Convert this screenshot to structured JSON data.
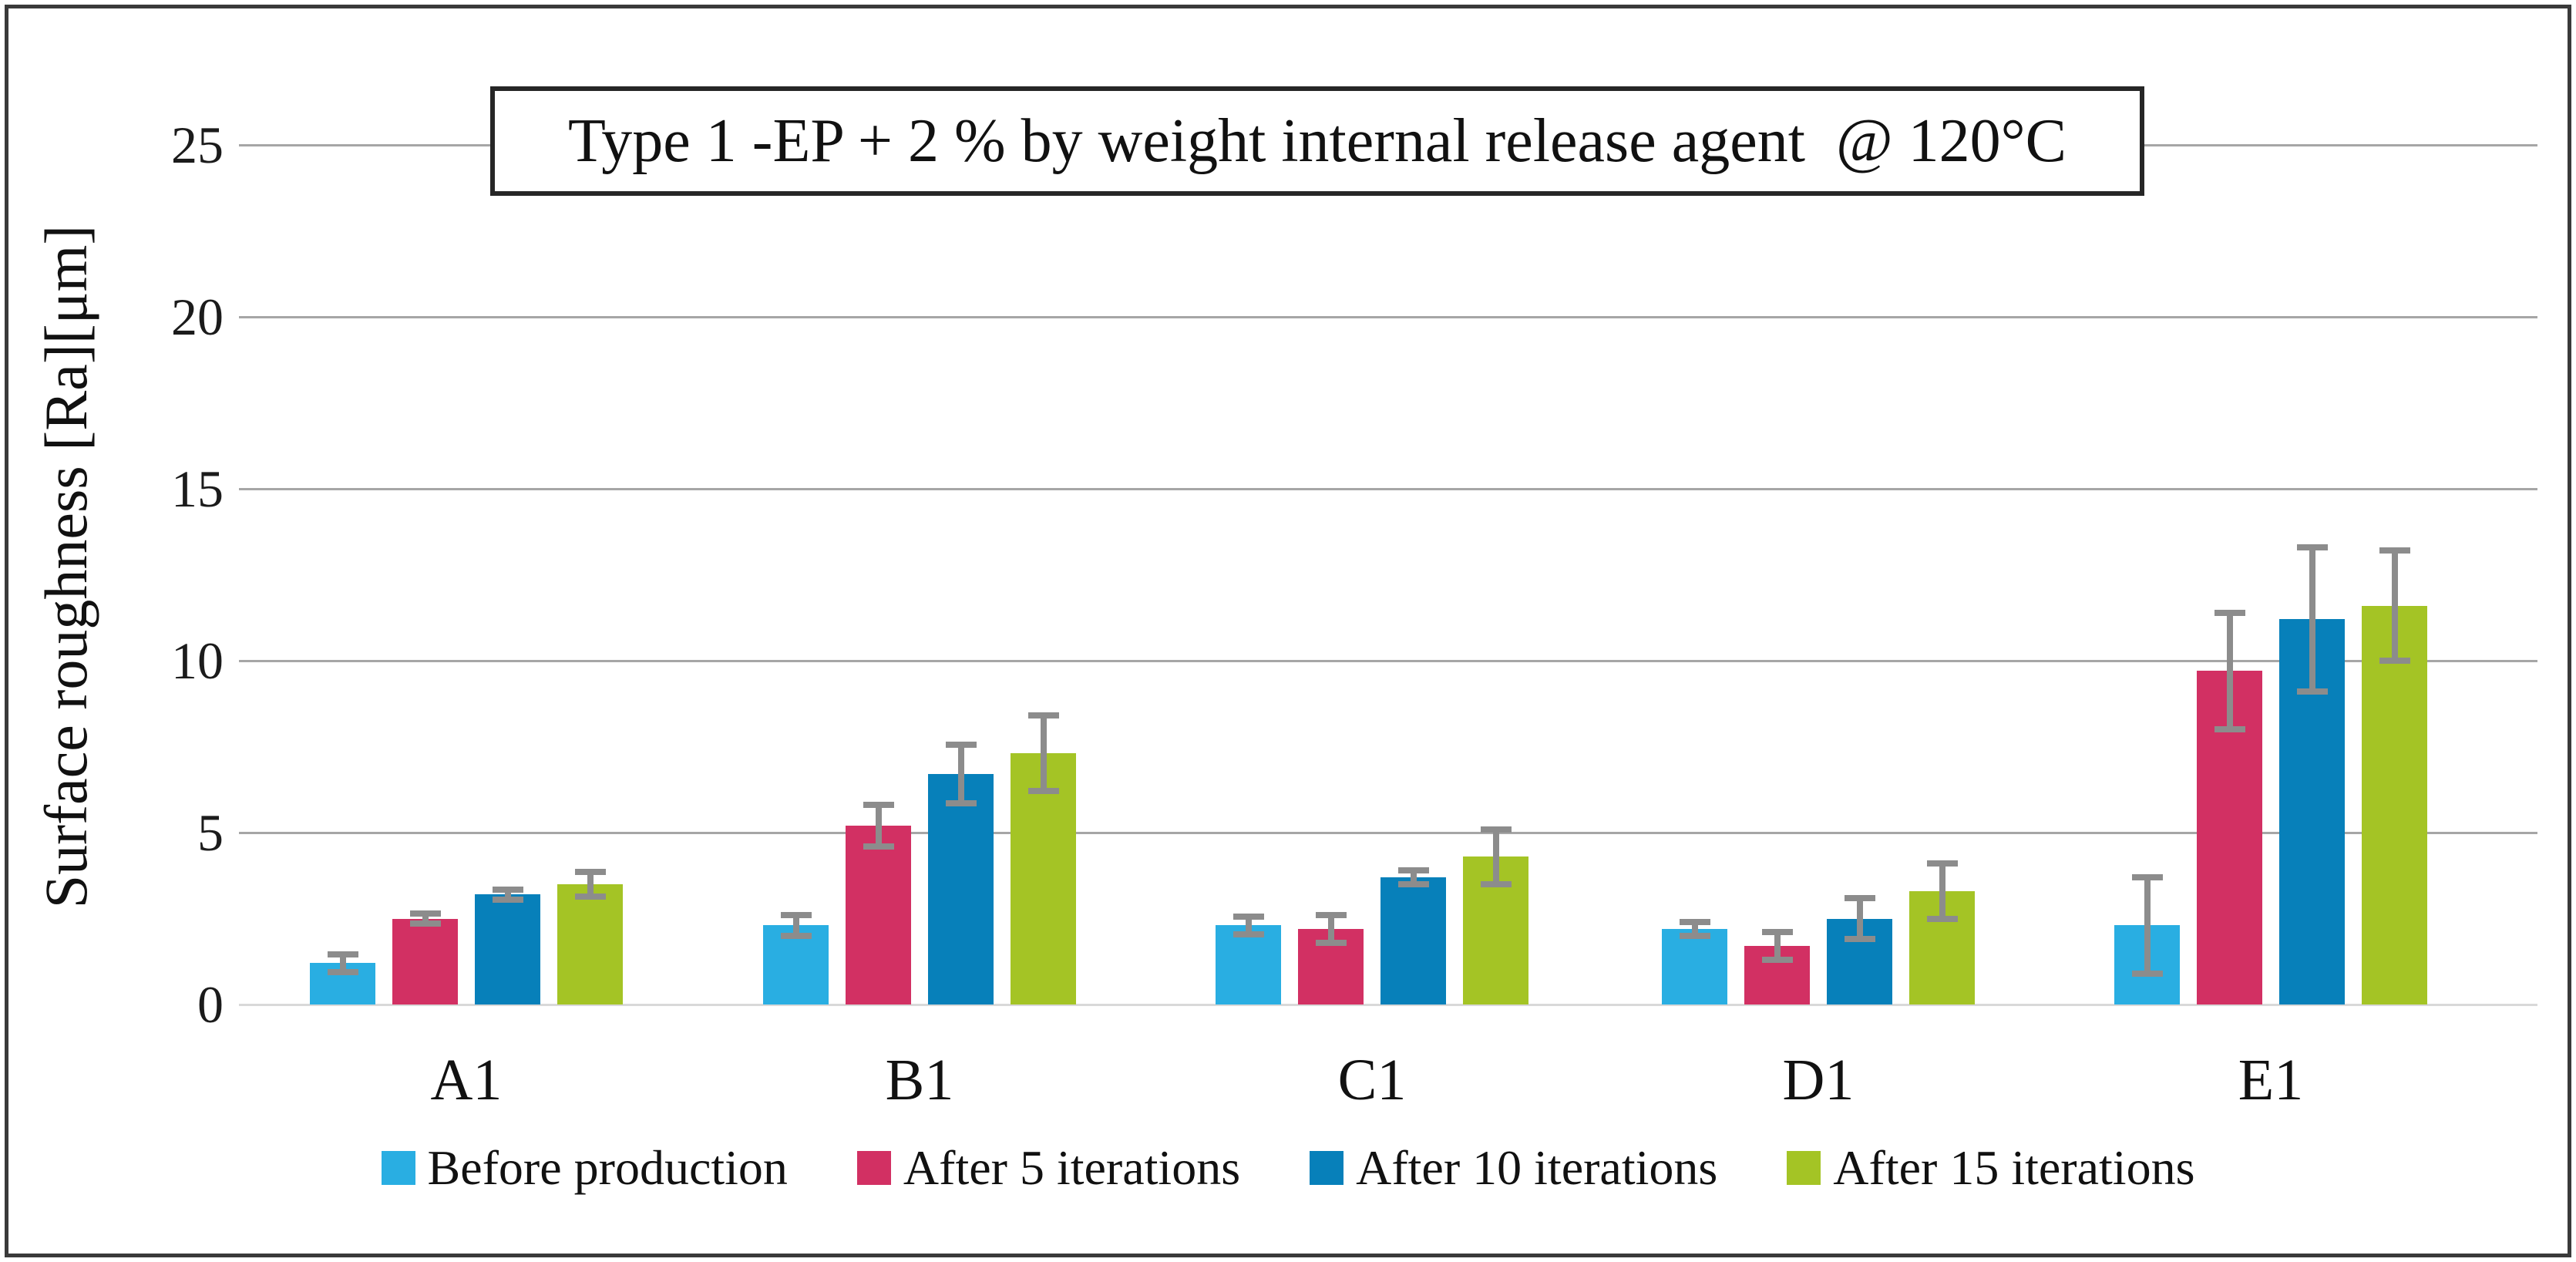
{
  "chart_data": {
    "type": "bar",
    "title": "Type 1 -EP + 2 % by weight internal release agent  @ 120°C",
    "ylabel": "Surface roughness [Ra][μm]",
    "categories": [
      "A1",
      "B1",
      "C1",
      "D1",
      "E1"
    ],
    "yticks": [
      0,
      5,
      10,
      15,
      20,
      25
    ],
    "ylim": [
      0,
      25
    ],
    "grid": true,
    "legend_position": "bottom",
    "series": [
      {
        "name": "Before production",
        "color": "#29AEE2",
        "values": [
          1.2,
          2.3,
          2.3,
          2.2,
          2.3
        ],
        "errors": [
          0.25,
          0.3,
          0.25,
          0.2,
          1.4
        ]
      },
      {
        "name": "After 5 iterations",
        "color": "#D23063",
        "values": [
          2.5,
          5.2,
          2.2,
          1.7,
          9.7
        ],
        "errors": [
          0.15,
          0.6,
          0.4,
          0.4,
          1.7
        ]
      },
      {
        "name": "After 10 iterations",
        "color": "#0780BA",
        "values": [
          3.2,
          6.7,
          3.7,
          2.5,
          11.2
        ],
        "errors": [
          0.15,
          0.85,
          0.2,
          0.6,
          2.1
        ]
      },
      {
        "name": "After 15 iterations",
        "color": "#A4C425",
        "values": [
          3.5,
          7.3,
          4.3,
          3.3,
          11.6
        ],
        "errors": [
          0.35,
          1.1,
          0.8,
          0.8,
          1.6
        ]
      }
    ],
    "error_bar_color": "#8C8C8C",
    "gridline_color": "#A6A6A6",
    "axis_line_color": "#D9D9D9"
  }
}
